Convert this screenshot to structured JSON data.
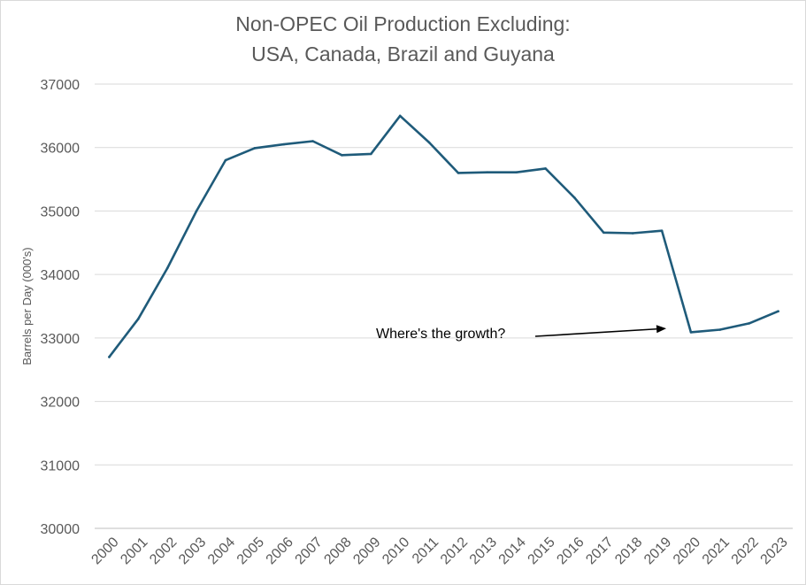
{
  "chart_data": {
    "type": "line",
    "title": [
      "Non-OPEC Oil Production Excluding:",
      "USA, Canada, Brazil and Guyana"
    ],
    "xlabel": "",
    "ylabel": "Barrels per Day (000's)",
    "ylim": [
      30000,
      37000
    ],
    "yticks": [
      30000,
      31000,
      32000,
      33000,
      34000,
      35000,
      36000,
      37000
    ],
    "grid": true,
    "legend": "none",
    "categories": [
      "2000",
      "2001",
      "2002",
      "2003",
      "2004",
      "2005",
      "2006",
      "2007",
      "2008",
      "2009",
      "2010",
      "2011",
      "2012",
      "2013",
      "2014",
      "2015",
      "2016",
      "2017",
      "2018",
      "2019",
      "2020",
      "2021",
      "2022",
      "2023"
    ],
    "series": [
      {
        "color": "#1f5b7a",
        "values": [
          32700,
          33300,
          34100,
          35000,
          35800,
          35990,
          36050,
          36100,
          35880,
          35900,
          36500,
          36080,
          35600,
          35610,
          35610,
          35670,
          35210,
          34660,
          34650,
          34690,
          33090,
          33130,
          33230,
          33420
        ]
      }
    ],
    "annotation": {
      "text": "Where's the growth?",
      "arrow_to": {
        "x": "2019",
        "y": 33150
      }
    }
  }
}
